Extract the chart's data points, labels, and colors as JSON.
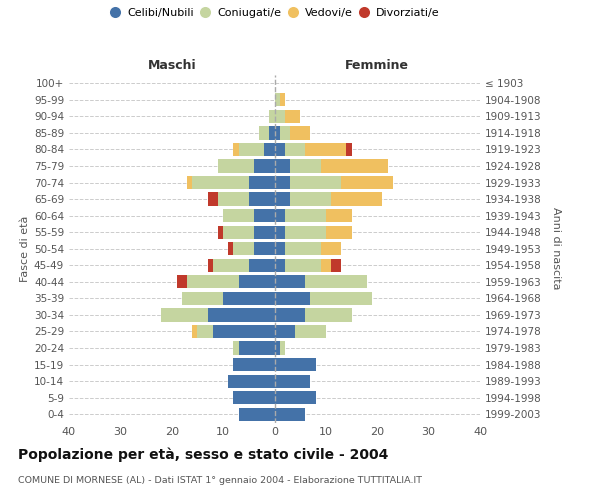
{
  "age_groups": [
    "0-4",
    "5-9",
    "10-14",
    "15-19",
    "20-24",
    "25-29",
    "30-34",
    "35-39",
    "40-44",
    "45-49",
    "50-54",
    "55-59",
    "60-64",
    "65-69",
    "70-74",
    "75-79",
    "80-84",
    "85-89",
    "90-94",
    "95-99",
    "100+"
  ],
  "birth_years": [
    "1999-2003",
    "1994-1998",
    "1989-1993",
    "1984-1988",
    "1979-1983",
    "1974-1978",
    "1969-1973",
    "1964-1968",
    "1959-1963",
    "1954-1958",
    "1949-1953",
    "1944-1948",
    "1939-1943",
    "1934-1938",
    "1929-1933",
    "1924-1928",
    "1919-1923",
    "1914-1918",
    "1909-1913",
    "1904-1908",
    "≤ 1903"
  ],
  "maschi": {
    "celibi": [
      7,
      8,
      9,
      8,
      7,
      12,
      13,
      10,
      7,
      5,
      4,
      4,
      4,
      5,
      5,
      4,
      2,
      1,
      0,
      0,
      0
    ],
    "coniugati": [
      0,
      0,
      0,
      0,
      1,
      3,
      9,
      8,
      10,
      7,
      4,
      6,
      6,
      6,
      11,
      7,
      5,
      2,
      1,
      0,
      0
    ],
    "vedovi": [
      0,
      0,
      0,
      0,
      0,
      1,
      0,
      0,
      0,
      0,
      0,
      0,
      0,
      0,
      1,
      0,
      1,
      0,
      0,
      0,
      0
    ],
    "divorziati": [
      0,
      0,
      0,
      0,
      0,
      0,
      0,
      0,
      2,
      1,
      1,
      1,
      0,
      2,
      0,
      0,
      0,
      0,
      0,
      0,
      0
    ]
  },
  "femmine": {
    "nubili": [
      6,
      8,
      7,
      8,
      1,
      4,
      6,
      7,
      6,
      2,
      2,
      2,
      2,
      3,
      3,
      3,
      2,
      1,
      0,
      0,
      0
    ],
    "coniugate": [
      0,
      0,
      0,
      0,
      1,
      6,
      9,
      12,
      12,
      7,
      7,
      8,
      8,
      8,
      10,
      6,
      4,
      2,
      2,
      1,
      0
    ],
    "vedove": [
      0,
      0,
      0,
      0,
      0,
      0,
      0,
      0,
      0,
      2,
      4,
      5,
      5,
      10,
      10,
      13,
      8,
      4,
      3,
      1,
      0
    ],
    "divorziate": [
      0,
      0,
      0,
      0,
      0,
      0,
      0,
      0,
      0,
      2,
      0,
      0,
      0,
      0,
      0,
      0,
      1,
      0,
      0,
      0,
      0
    ]
  },
  "colors": {
    "celibi": "#4472a8",
    "coniugati": "#c5d5a0",
    "vedovi": "#f0c060",
    "divorziati": "#c0392b"
  },
  "title": "Popolazione per età, sesso e stato civile - 2004",
  "subtitle": "COMUNE DI MORNESE (AL) - Dati ISTAT 1° gennaio 2004 - Elaborazione TUTTITALIA.IT",
  "xlabel_left": "Maschi",
  "xlabel_right": "Femmine",
  "ylabel_left": "Fasce di età",
  "ylabel_right": "Anni di nascita",
  "xlim": 40,
  "legend_labels": [
    "Celibi/Nubili",
    "Coniugati/e",
    "Vedovi/e",
    "Divorziati/e"
  ],
  "background_color": "#ffffff",
  "grid_color": "#cccccc"
}
